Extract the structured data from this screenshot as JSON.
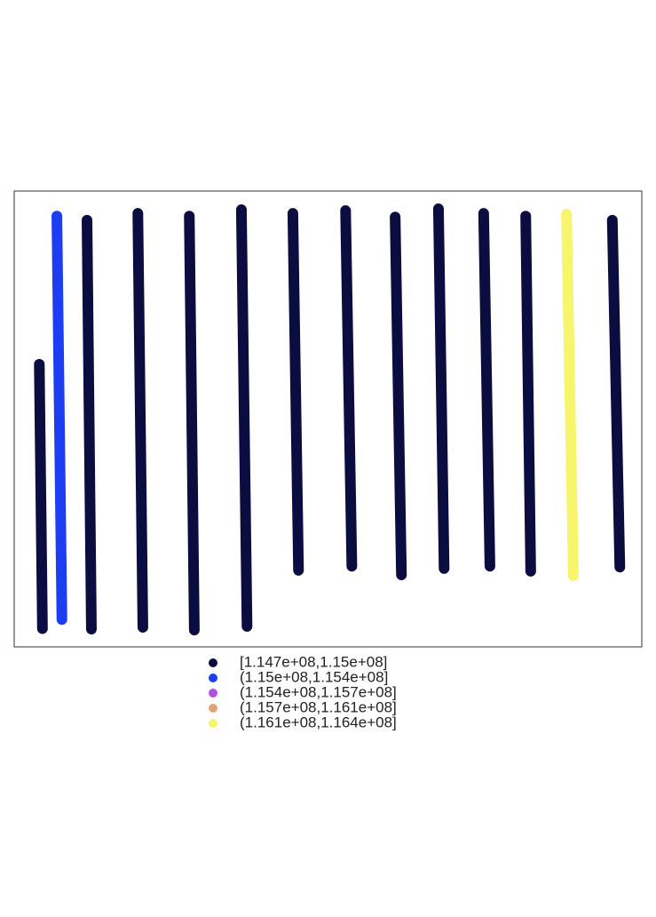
{
  "chart_data": {
    "type": "line",
    "xlim": [
      0,
      100
    ],
    "ylim": [
      0,
      100
    ],
    "series": [
      {
        "color": "#0b0d40",
        "x": [
          4.0,
          4.5
        ],
        "values": [
          62,
          4
        ]
      },
      {
        "color": "#1c3df2",
        "x": [
          6.8,
          7.6
        ],
        "values": [
          94.5,
          6
        ]
      },
      {
        "color": "#0b0d40",
        "x": [
          11.6,
          12.3
        ],
        "values": [
          93.6,
          3.9
        ]
      },
      {
        "color": "#0b0d40",
        "x": [
          19.7,
          20.5
        ],
        "values": [
          95.1,
          4.3
        ]
      },
      {
        "color": "#0b0d40",
        "x": [
          27.9,
          28.7
        ],
        "values": [
          94.5,
          3.7
        ]
      },
      {
        "color": "#0b0d40",
        "x": [
          36.2,
          37.1
        ],
        "values": [
          95.9,
          4.5
        ]
      },
      {
        "color": "#0b0d40",
        "x": [
          44.4,
          45.3
        ],
        "values": [
          95.1,
          16.8
        ]
      },
      {
        "color": "#0b0d40",
        "x": [
          52.8,
          53.8
        ],
        "values": [
          95.7,
          17.7
        ]
      },
      {
        "color": "#0b0d40",
        "x": [
          60.7,
          61.7
        ],
        "values": [
          94.3,
          15.8
        ]
      },
      {
        "color": "#0b0d40",
        "x": [
          67.6,
          68.5
        ],
        "values": [
          96.1,
          17.2
        ]
      },
      {
        "color": "#0b0d40",
        "x": [
          74.8,
          75.8
        ],
        "values": [
          95.1,
          17.7
        ]
      },
      {
        "color": "#0b0d40",
        "x": [
          81.5,
          82.3
        ],
        "values": [
          94.5,
          16.6
        ]
      },
      {
        "color": "#f7f56c",
        "x": [
          88.0,
          89.1
        ],
        "values": [
          94.9,
          15.6
        ]
      },
      {
        "color": "#0b0d40",
        "x": [
          95.3,
          96.5
        ],
        "values": [
          93.6,
          17.5
        ]
      }
    ],
    "legend": {
      "labels": [
        "[1.147e+08,1.15e+08]",
        "(1.15e+08,1.154e+08]",
        "(1.154e+08,1.157e+08]",
        "(1.157e+08,1.161e+08]",
        "(1.161e+08,1.164e+08]"
      ],
      "colors": [
        "#0b0d40",
        "#1c3df2",
        "#b44ee0",
        "#e6a276",
        "#f7f56c"
      ]
    }
  }
}
